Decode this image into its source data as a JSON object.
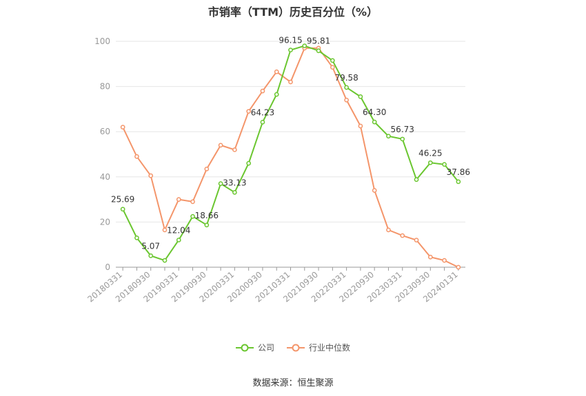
{
  "chart_data": {
    "type": "line",
    "title": "市销率（TTM）历史百分位（%）",
    "x": [
      "20180331",
      "20180630",
      "20180930",
      "20181231",
      "20190331",
      "20190630",
      "20190930",
      "20191231",
      "20200331",
      "20200630",
      "20200930",
      "20201231",
      "20210331",
      "20210630",
      "20210930",
      "20211231",
      "20220331",
      "20220630",
      "20220930",
      "20221231",
      "20230331",
      "20230630",
      "20230930",
      "20231231",
      "20240131"
    ],
    "x_tick_labels": [
      "20180331",
      "20180930",
      "20190331",
      "20190930",
      "20200331",
      "20200930",
      "20210331",
      "20210930",
      "20220331",
      "20220930",
      "20230331",
      "20230930",
      "20240131"
    ],
    "y_ticks": [
      "0",
      "20",
      "40",
      "60",
      "80",
      "100"
    ],
    "ylim": [
      0,
      100
    ],
    "grid": true,
    "legend_position": "bottom",
    "series": [
      {
        "name": "公司",
        "color": "#6ac62f",
        "values": [
          25.69,
          13.0,
          5.07,
          3.0,
          12.04,
          22.5,
          18.66,
          37.0,
          33.13,
          46.0,
          64.23,
          76.5,
          96.15,
          98.0,
          95.81,
          91.5,
          79.58,
          75.5,
          64.3,
          58.0,
          56.73,
          38.8,
          46.25,
          45.5,
          37.86
        ],
        "labels": [
          "25.69",
          "",
          "5.07",
          "",
          "12.04",
          "",
          "18.66",
          "",
          "33.13",
          "",
          "64.23",
          "",
          "96.15",
          "",
          "95.81",
          "",
          "79.58",
          "",
          "64.30",
          "",
          "56.73",
          "",
          "46.25",
          "",
          "37.86"
        ]
      },
      {
        "name": "行业中位数",
        "color": "#f4956a",
        "values": [
          62.0,
          49.0,
          40.5,
          16.5,
          30.0,
          29.0,
          43.5,
          54.0,
          52.0,
          69.0,
          78.0,
          86.5,
          82.0,
          97.0,
          97.0,
          88.5,
          74.0,
          62.5,
          34.0,
          16.5,
          14.0,
          12.0,
          4.5,
          3.0,
          0.0
        ]
      }
    ]
  },
  "source": "数据来源：恒生聚源"
}
